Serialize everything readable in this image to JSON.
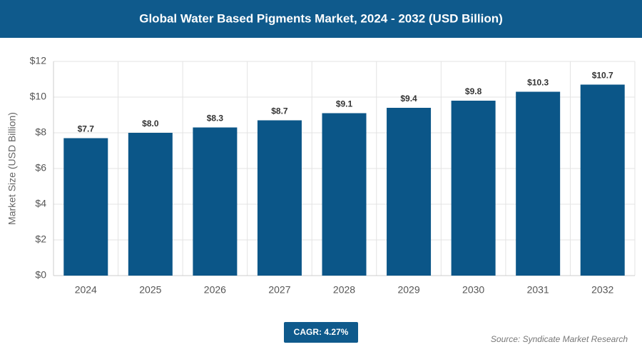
{
  "chart_data": {
    "type": "bar",
    "title": "Global Water Based Pigments Market, 2024 - 2032 (USD Billion)",
    "y_label": "Market Size (USD Billion)",
    "categories": [
      "2024",
      "2025",
      "2026",
      "2027",
      "2028",
      "2029",
      "2030",
      "2031",
      "2032"
    ],
    "values": [
      7.7,
      8.0,
      8.3,
      8.7,
      9.1,
      9.4,
      9.8,
      10.3,
      10.7
    ],
    "value_labels": [
      "$7.7",
      "$8.0",
      "$8.3",
      "$8.7",
      "$9.1",
      "$9.4",
      "$9.8",
      "$10.3",
      "$10.7"
    ],
    "color": "#0b5688",
    "ylim": [
      0,
      12
    ],
    "yticks": [
      {
        "value": 0,
        "label": "$0"
      },
      {
        "value": 2,
        "label": "$2"
      },
      {
        "value": 4,
        "label": "$4"
      },
      {
        "value": 6,
        "label": "$6"
      },
      {
        "value": 8,
        "label": "$8"
      },
      {
        "value": 10,
        "label": "$10"
      },
      {
        "value": 12,
        "label": "$12"
      }
    ],
    "grid": true,
    "cagr": "CAGR: 4.27%",
    "source": "Source: Syndicate Market Research"
  }
}
